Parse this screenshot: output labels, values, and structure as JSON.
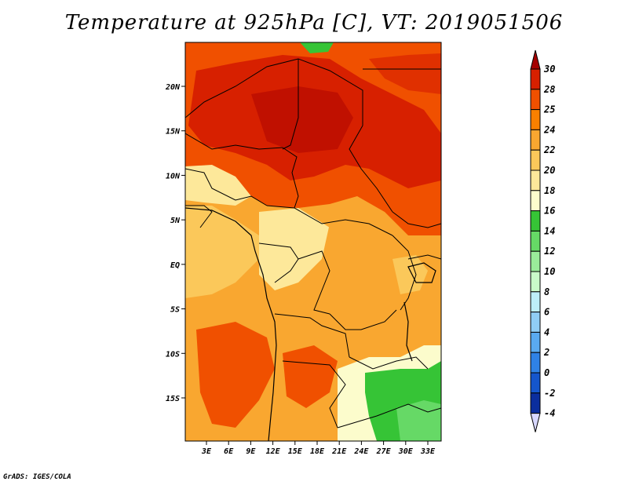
{
  "title": "Temperature at 925hPa [C], VT: 2019051506",
  "credit": "GrADS: IGES/COLA",
  "map": {
    "lat_ticks": [
      {
        "label": "20N",
        "lat": 20
      },
      {
        "label": "15N",
        "lat": 15
      },
      {
        "label": "10N",
        "lat": 10
      },
      {
        "label": "5N",
        "lat": 5
      },
      {
        "label": "EQ",
        "lat": 0
      },
      {
        "label": "5S",
        "lat": -5
      },
      {
        "label": "10S",
        "lat": -10
      },
      {
        "label": "15S",
        "lat": -15
      }
    ],
    "lon_ticks": [
      {
        "label": "3E",
        "lon": 3
      },
      {
        "label": "6E",
        "lon": 6
      },
      {
        "label": "9E",
        "lon": 9
      },
      {
        "label": "12E",
        "lon": 12
      },
      {
        "label": "15E",
        "lon": 15
      },
      {
        "label": "18E",
        "lon": 18
      },
      {
        "label": "21E",
        "lon": 21
      },
      {
        "label": "24E",
        "lon": 24
      },
      {
        "label": "27E",
        "lon": 27
      },
      {
        "label": "30E",
        "lon": 30
      },
      {
        "label": "33E",
        "lon": 33
      }
    ]
  },
  "colorbar": {
    "levels": [
      "30",
      "28",
      "25",
      "24",
      "22",
      "20",
      "18",
      "16",
      "14",
      "12",
      "10",
      "8",
      "6",
      "4",
      "2",
      "0",
      "-2",
      "-4"
    ],
    "colors": [
      "#a50000",
      "#d72000",
      "#f05000",
      "#fa8000",
      "#f9a730",
      "#fbc85a",
      "#fde89a",
      "#fcfccc",
      "#36c436",
      "#66d966",
      "#9aec9a",
      "#c9fac9",
      "#bdeef9",
      "#90cdf5",
      "#5aaaf0",
      "#2f82e6",
      "#1556cc",
      "#0b2e9e",
      "#00156b",
      "#d8d8ff"
    ]
  }
}
